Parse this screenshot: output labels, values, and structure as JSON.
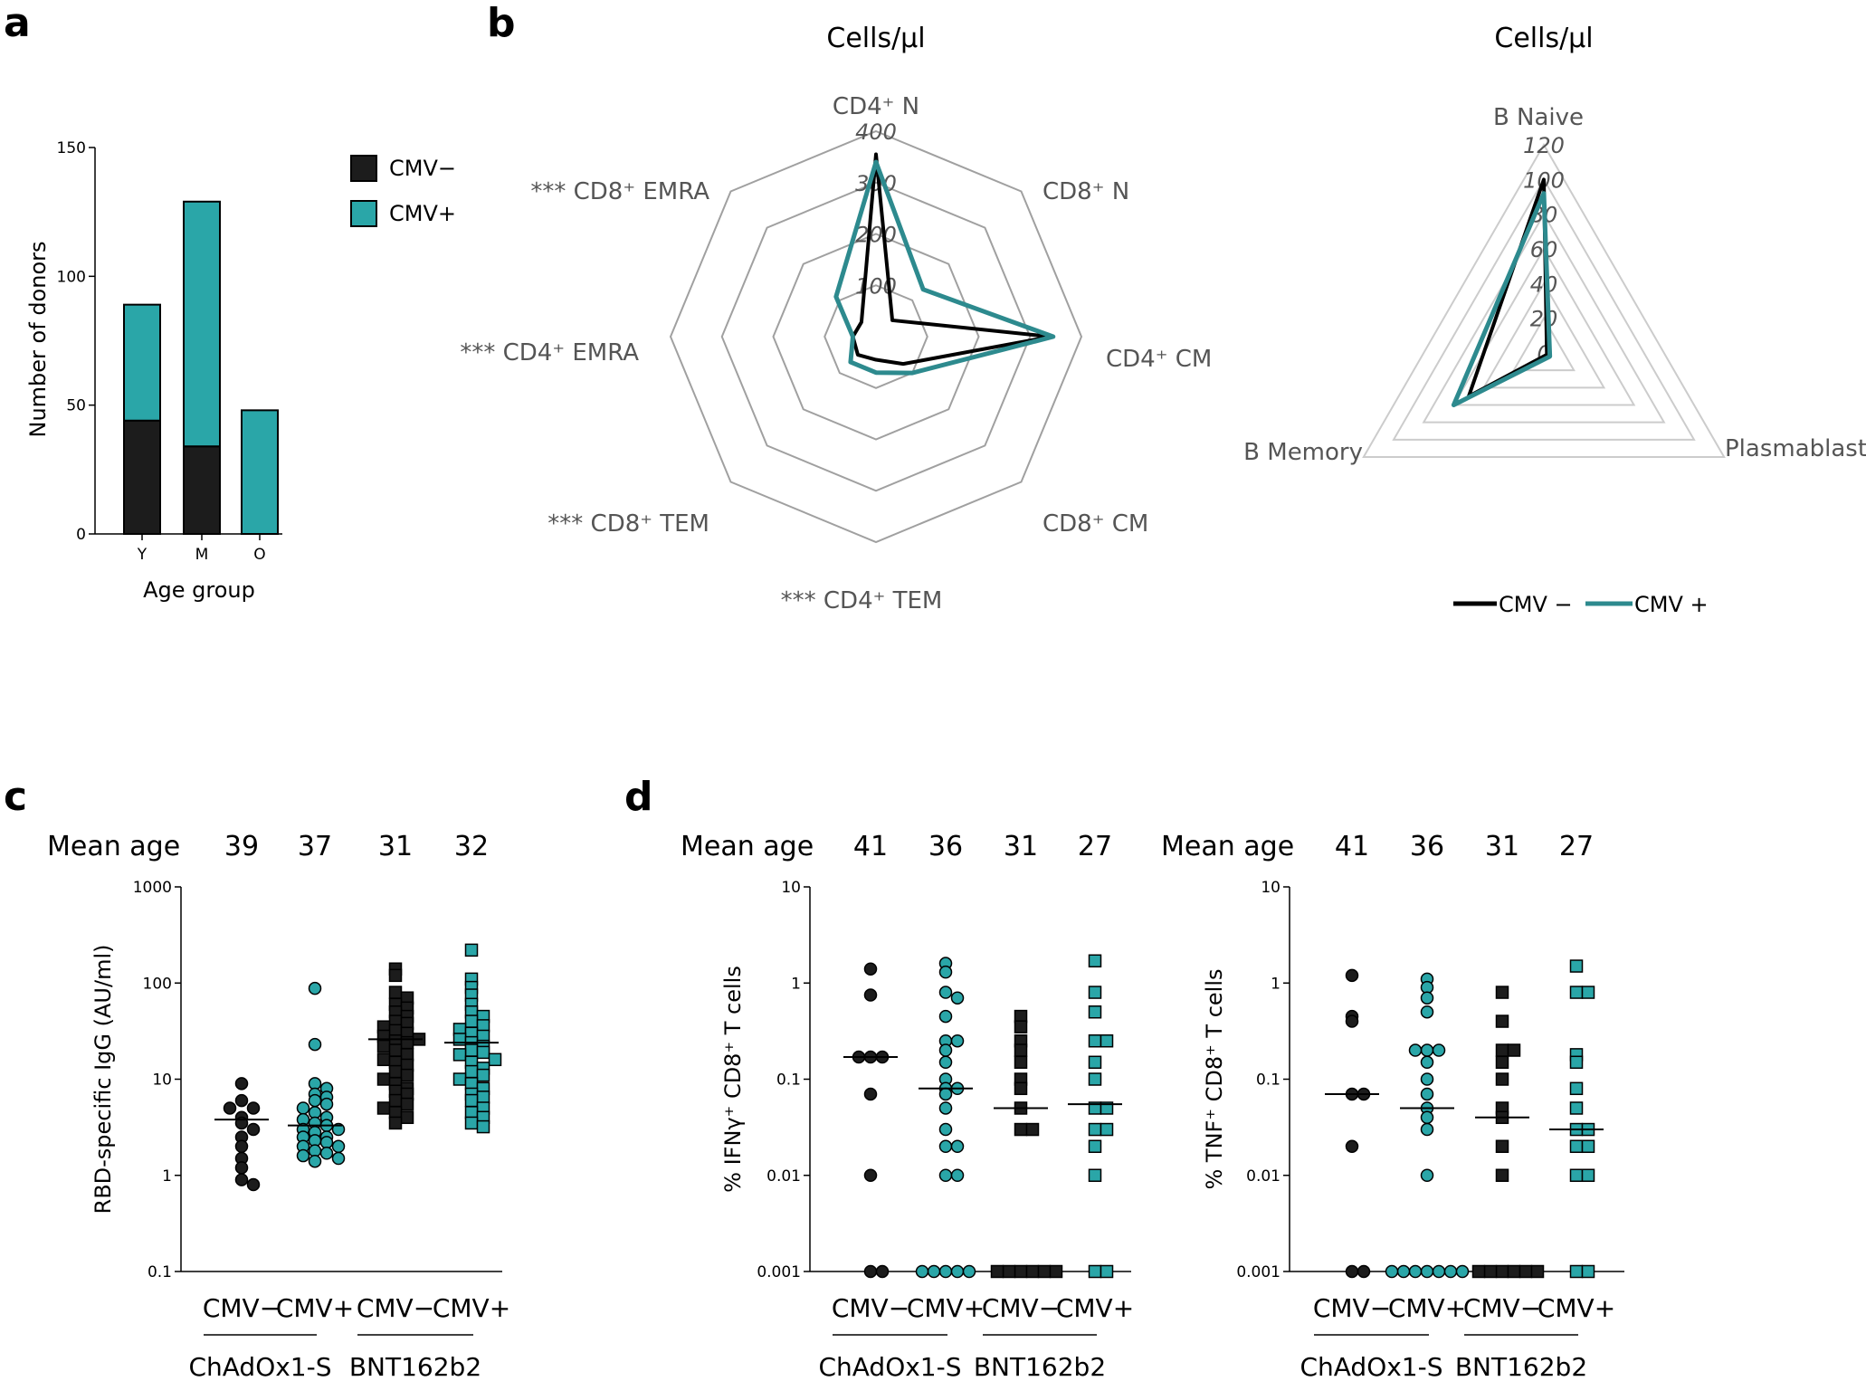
{
  "colors": {
    "cmv_neg": "#1c1c1c",
    "cmv_pos": "#2aa6a8",
    "cmv_pos_line": "#2d8a8e",
    "grid": "#a0a0a0",
    "tri_grid": "#cccccc"
  },
  "panels": {
    "a": "a",
    "b": "b",
    "c": "c",
    "d": "d"
  },
  "chart_data": [
    {
      "id": "a",
      "type": "bar",
      "stacked": true,
      "categories": [
        "Y",
        "M",
        "O"
      ],
      "series": [
        {
          "name": "CMV−",
          "values": [
            44,
            34,
            0
          ]
        },
        {
          "name": "CMV+",
          "values": [
            45,
            95,
            48
          ]
        }
      ],
      "xlabel": "Age group",
      "ylabel": "Number of donors",
      "ylim": [
        0,
        150
      ],
      "yticks": [
        "0",
        "50",
        "100",
        "150"
      ]
    },
    {
      "id": "b1",
      "type": "radar",
      "title": "Cells/µl",
      "axes": [
        "CD4⁺ N",
        "CD8⁺ N",
        "CD4⁺ CM",
        "CD8⁺ CM",
        "*** CD4⁺ TEM",
        "*** CD8⁺ TEM",
        "*** CD4⁺ EMRA",
        "*** CD8⁺ EMRA"
      ],
      "rings": [
        "100",
        "200",
        "300",
        "400"
      ],
      "rmax": 400,
      "series": [
        {
          "name": "CMV −",
          "values": [
            355,
            45,
            340,
            75,
            45,
            50,
            45,
            40
          ]
        },
        {
          "name": "CMV +",
          "values": [
            340,
            130,
            345,
            100,
            70,
            70,
            45,
            110
          ]
        }
      ]
    },
    {
      "id": "b2",
      "type": "radar",
      "title": "Cells/µl",
      "axes": [
        "B Naive",
        "Plasmablast",
        "B Memory"
      ],
      "rings": [
        "0",
        "20",
        "40",
        "60",
        "80",
        "100",
        "120"
      ],
      "rmax": 120,
      "series": [
        {
          "name": "CMV −",
          "values": [
            100,
            2,
            50
          ]
        },
        {
          "name": "CMV +",
          "values": [
            92,
            4,
            60
          ]
        }
      ],
      "legend": [
        "CMV −",
        "CMV +"
      ]
    },
    {
      "id": "c",
      "type": "scatter",
      "log_scale": true,
      "ylabel": "RBD-specific IgG (AU/ml)",
      "ylim": [
        0.1,
        1000
      ],
      "yticks": [
        "0.1",
        "1",
        "10",
        "100",
        "1000"
      ],
      "mean_age_label": "Mean age",
      "mean_ages": [
        "39",
        "37",
        "31",
        "32"
      ],
      "groups": [
        "CMV−",
        "CMV+",
        "CMV−",
        "CMV+"
      ],
      "vaccines": [
        "ChAdOx1-S",
        "BNT162b2"
      ],
      "medians": [
        3.8,
        3.3,
        26,
        24
      ],
      "series": [
        {
          "name": "ChAdOx1-S CMV−",
          "marker": "circle",
          "color": "neg",
          "values": [
            9,
            6,
            5,
            5,
            4,
            3.5,
            3,
            2.5,
            2,
            1.5,
            1.2,
            0.9,
            0.8
          ]
        },
        {
          "name": "ChAdOx1-S CMV+",
          "marker": "circle",
          "color": "pos",
          "values": [
            88,
            23,
            9,
            8,
            7,
            6.5,
            6,
            5.5,
            5,
            4.5,
            4,
            3.8,
            3.5,
            3.3,
            3,
            3,
            2.8,
            2.5,
            2.5,
            2.3,
            2.2,
            2,
            2,
            1.8,
            1.7,
            1.6,
            1.5,
            1.4
          ]
        },
        {
          "name": "BNT162b2 CMV−",
          "marker": "square",
          "color": "neg",
          "values": [
            140,
            120,
            80,
            70,
            60,
            55,
            50,
            45,
            40,
            38,
            35,
            32,
            30,
            28,
            26,
            25,
            24,
            22,
            20,
            18,
            16,
            15,
            14,
            12,
            11,
            10,
            9,
            8,
            7.5,
            7,
            6,
            5.5,
            5,
            4.5,
            4,
            3.5
          ]
        },
        {
          "name": "BNT162b2 CMV+",
          "marker": "square",
          "color": "pos",
          "values": [
            220,
            110,
            90,
            75,
            60,
            50,
            45,
            40,
            36,
            33,
            30,
            28,
            26,
            24,
            22,
            20,
            19,
            18,
            16,
            15,
            13,
            12,
            11,
            10,
            9,
            8,
            7,
            6.5,
            6,
            5,
            4.5,
            4,
            3.5,
            3.2
          ]
        }
      ]
    },
    {
      "id": "d1",
      "type": "scatter",
      "log_scale": true,
      "ylabel": "% IFNγ⁺ CD8⁺ T cells",
      "ylim": [
        0.001,
        10
      ],
      "yticks": [
        "0.001",
        "0.01",
        "0.1",
        "1",
        "10"
      ],
      "mean_age_label": "Mean age",
      "mean_ages": [
        "41",
        "36",
        "31",
        "27"
      ],
      "groups": [
        "CMV−",
        "CMV+",
        "CMV−",
        "CMV+"
      ],
      "vaccines": [
        "ChAdOx1-S",
        "BNT162b2"
      ],
      "medians": [
        0.17,
        0.08,
        0.05,
        0.055
      ],
      "series": [
        {
          "name": "ChAdOx1-S CMV−",
          "marker": "circle",
          "color": "neg",
          "values": [
            1.4,
            0.75,
            0.17,
            0.17,
            0.17,
            0.07,
            0.01,
            0.001,
            0.001
          ]
        },
        {
          "name": "ChAdOx1-S CMV+",
          "marker": "circle",
          "color": "pos",
          "values": [
            1.6,
            1.3,
            0.8,
            0.7,
            0.45,
            0.25,
            0.25,
            0.2,
            0.15,
            0.1,
            0.08,
            0.08,
            0.07,
            0.05,
            0.03,
            0.02,
            0.02,
            0.01,
            0.01,
            0.001,
            0.001,
            0.001,
            0.001,
            0.001
          ]
        },
        {
          "name": "BNT162b2 CMV−",
          "marker": "square",
          "color": "neg",
          "values": [
            0.45,
            0.35,
            0.25,
            0.2,
            0.15,
            0.1,
            0.08,
            0.05,
            0.03,
            0.03,
            0.001,
            0.001,
            0.001,
            0.001,
            0.001,
            0.001
          ]
        },
        {
          "name": "BNT162b2 CMV+",
          "marker": "square",
          "color": "pos",
          "values": [
            1.7,
            0.8,
            0.5,
            0.25,
            0.25,
            0.15,
            0.1,
            0.05,
            0.05,
            0.03,
            0.03,
            0.02,
            0.01,
            0.001,
            0.001
          ]
        }
      ]
    },
    {
      "id": "d2",
      "type": "scatter",
      "log_scale": true,
      "ylabel": "% TNF⁺ CD8⁺ T cells",
      "ylim": [
        0.001,
        10
      ],
      "yticks": [
        "0.001",
        "0.01",
        "0.1",
        "1",
        "10"
      ],
      "mean_age_label": "Mean age",
      "mean_ages": [
        "41",
        "36",
        "31",
        "27"
      ],
      "groups": [
        "CMV−",
        "CMV+",
        "CMV−",
        "CMV+"
      ],
      "vaccines": [
        "ChAdOx1-S",
        "BNT162b2"
      ],
      "medians": [
        0.07,
        0.05,
        0.04,
        0.03
      ],
      "series": [
        {
          "name": "ChAdOx1-S CMV−",
          "marker": "circle",
          "color": "neg",
          "values": [
            1.2,
            0.45,
            0.4,
            0.07,
            0.07,
            0.02,
            0.001,
            0.001
          ]
        },
        {
          "name": "ChAdOx1-S CMV+",
          "marker": "circle",
          "color": "pos",
          "values": [
            1.1,
            0.9,
            0.7,
            0.5,
            0.2,
            0.2,
            0.2,
            0.15,
            0.1,
            0.07,
            0.05,
            0.04,
            0.03,
            0.01,
            0.001,
            0.001,
            0.001,
            0.001,
            0.001,
            0.001,
            0.001
          ]
        },
        {
          "name": "BNT162b2 CMV−",
          "marker": "square",
          "color": "neg",
          "values": [
            0.8,
            0.4,
            0.2,
            0.2,
            0.15,
            0.1,
            0.05,
            0.04,
            0.02,
            0.01,
            0.001,
            0.001,
            0.001,
            0.001,
            0.001,
            0.001
          ]
        },
        {
          "name": "BNT162b2 CMV+",
          "marker": "square",
          "color": "pos",
          "values": [
            1.5,
            0.8,
            0.8,
            0.18,
            0.15,
            0.08,
            0.05,
            0.03,
            0.03,
            0.02,
            0.02,
            0.01,
            0.01,
            0.001,
            0.001
          ]
        }
      ]
    }
  ]
}
